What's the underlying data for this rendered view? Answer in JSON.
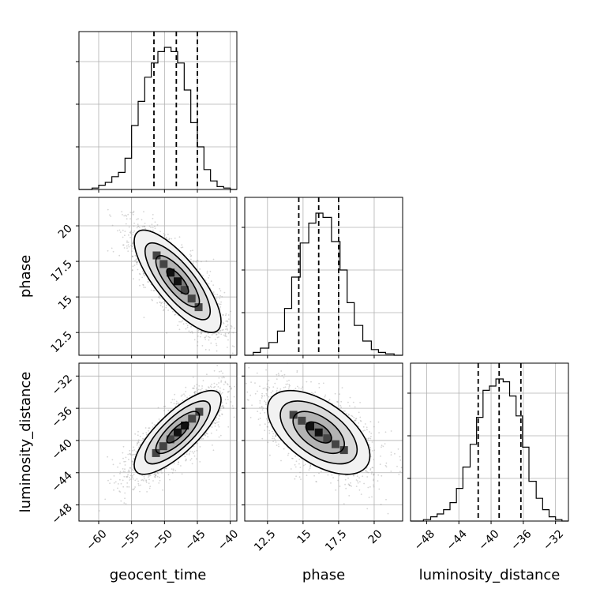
{
  "chart_data": {
    "type": "corner",
    "parameters": [
      "geocent_time",
      "phase",
      "luminosity_distance"
    ],
    "grid": true,
    "histograms": [
      {
        "parameter": "geocent_time",
        "xlim": [
          -63,
          -39
        ],
        "xticks": [
          -60,
          -55,
          -50,
          -45,
          -40
        ],
        "quantiles": [
          -51.6,
          -48.2,
          -45.0
        ],
        "bin_edges": [
          -63.0,
          -62.0,
          -61.0,
          -60.0,
          -59.0,
          -58.0,
          -57.0,
          -56.0,
          -55.0,
          -54.0,
          -53.0,
          -52.0,
          -51.0,
          -50.0,
          -49.0,
          -48.0,
          -47.0,
          -46.0,
          -45.0,
          -44.0,
          -43.0,
          -42.0,
          -41.0,
          -40.0,
          -39.0
        ],
        "counts": [
          0,
          0,
          0.01,
          0.03,
          0.05,
          0.09,
          0.12,
          0.22,
          0.45,
          0.62,
          0.79,
          0.89,
          0.97,
          1.0,
          0.97,
          0.89,
          0.7,
          0.47,
          0.3,
          0.14,
          0.06,
          0.02,
          0.01,
          0
        ]
      },
      {
        "parameter": "phase",
        "xlim": [
          10.9,
          22.0
        ],
        "xticks": [
          12.5,
          15.0,
          17.5,
          20.0
        ],
        "quantiles": [
          14.7,
          16.1,
          17.5
        ],
        "bin_edges": [
          10.9,
          11.5,
          12.0,
          12.6,
          13.2,
          13.7,
          14.2,
          14.8,
          15.4,
          15.9,
          16.4,
          17.0,
          17.6,
          18.1,
          18.6,
          19.2,
          19.8,
          20.3,
          20.8,
          21.4,
          22.0
        ],
        "counts": [
          0.0,
          0.02,
          0.05,
          0.09,
          0.17,
          0.33,
          0.55,
          0.79,
          0.93,
          1.0,
          0.97,
          0.8,
          0.6,
          0.37,
          0.21,
          0.1,
          0.04,
          0.02,
          0.01,
          0.0
        ]
      },
      {
        "parameter": "luminosity_distance",
        "xlim": [
          -50.0,
          -30.4
        ],
        "xticks": [
          -48,
          -44,
          -40,
          -36,
          -32
        ],
        "quantiles": [
          -41.6,
          -39.0,
          -36.3
        ],
        "bin_edges": [
          -50.0,
          -49.2,
          -48.4,
          -47.5,
          -46.7,
          -45.9,
          -45.1,
          -44.3,
          -43.5,
          -42.6,
          -41.8,
          -41.0,
          -40.2,
          -39.4,
          -38.5,
          -37.7,
          -36.9,
          -36.1,
          -35.3,
          -34.4,
          -33.6,
          -32.8,
          -32.0,
          -31.2,
          -30.4
        ],
        "counts": [
          0,
          0.0,
          0.01,
          0.03,
          0.05,
          0.08,
          0.13,
          0.23,
          0.38,
          0.54,
          0.73,
          0.92,
          0.95,
          1.0,
          0.98,
          0.88,
          0.74,
          0.52,
          0.28,
          0.16,
          0.08,
          0.03,
          0.01,
          0.0
        ]
      }
    ],
    "pair_plots": [
      {
        "x": "geocent_time",
        "y": "phase",
        "yticks": [
          12.5,
          15.0,
          17.5,
          20.0
        ],
        "ylim": [
          10.9,
          22.0
        ],
        "mean": [
          -48.0,
          16.1
        ],
        "sd": [
          3.3,
          1.8
        ],
        "correlation": -0.78
      },
      {
        "x": "geocent_time",
        "y": "luminosity_distance",
        "yticks": [
          -48,
          -44,
          -40,
          -36,
          -32
        ],
        "ylim": [
          -50.0,
          -30.4
        ],
        "mean": [
          -48.0,
          -39.0
        ],
        "sd": [
          3.3,
          2.6
        ],
        "correlation": 0.78
      },
      {
        "x": "phase",
        "y": "luminosity_distance",
        "mean": [
          16.1,
          -39.0
        ],
        "sd": [
          1.8,
          2.6
        ],
        "correlation": -0.55
      }
    ],
    "contour_levels_sigma": [
      0.5,
      1.0,
      1.5,
      2.0
    ]
  }
}
